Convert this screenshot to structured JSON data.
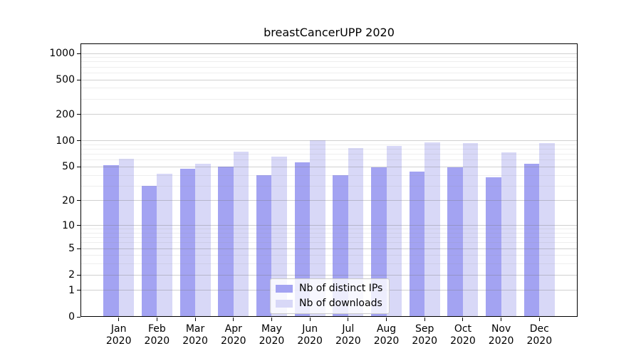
{
  "chart_data": {
    "type": "bar",
    "title": "breastCancerUPP 2020",
    "yscale": "log1p",
    "grid": true,
    "legend_position": "lower center",
    "y_ticks": [
      0,
      1,
      2,
      5,
      10,
      20,
      50,
      100,
      200,
      500,
      1000
    ],
    "ylim": [
      0,
      1250
    ],
    "x_second_line": "2020",
    "categories": [
      "Jan",
      "Feb",
      "Mar",
      "Apr",
      "May",
      "Jun",
      "Jul",
      "Aug",
      "Sep",
      "Oct",
      "Nov",
      "Dec"
    ],
    "series": [
      {
        "name": "Nb of distinct IPs",
        "color": "#a3a3f2",
        "values": [
          52,
          30,
          48,
          50,
          40,
          57,
          40,
          49,
          44,
          49,
          38,
          54
        ]
      },
      {
        "name": "Nb of downloads",
        "color": "#d8d8f7",
        "values": [
          62,
          42,
          54,
          75,
          66,
          101,
          82,
          88,
          96,
          94,
          74,
          94
        ]
      }
    ]
  }
}
